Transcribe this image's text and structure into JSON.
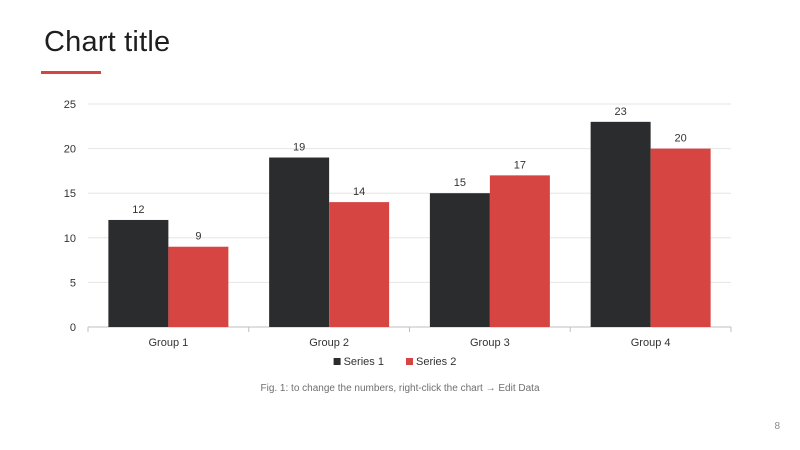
{
  "slide": {
    "title": "Chart title",
    "caption": "Fig. 1: to change the numbers, right-click the chart → Edit Data",
    "page_number": "8",
    "accent_color": "#d64541"
  },
  "chart_data": {
    "type": "bar",
    "title": "",
    "xlabel": "",
    "ylabel": "",
    "categories": [
      "Group 1",
      "Group 2",
      "Group 3",
      "Group 4"
    ],
    "series": [
      {
        "name": "Series 1",
        "values": [
          12,
          19,
          15,
          23
        ],
        "color": "#2b2c2e"
      },
      {
        "name": "Series 2",
        "values": [
          9,
          14,
          17,
          20
        ],
        "color": "#d64541"
      }
    ],
    "ylim": [
      0,
      25
    ],
    "yticks": [
      0,
      5,
      10,
      15,
      20,
      25
    ],
    "grid": true,
    "data_labels": true,
    "legend_position": "bottom"
  }
}
